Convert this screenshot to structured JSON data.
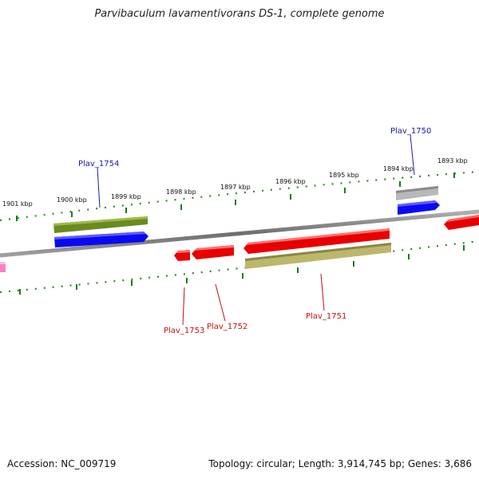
{
  "title": "Parvibaculum lavamentivorans DS-1, complete genome",
  "footer": {
    "accession": "Accession: NC_009719",
    "summary": "Topology: circular; Length: 3,914,745 bp; Genes: 3,686"
  },
  "colors": {
    "backbone": "#808080",
    "tick_major": "#1a7a1a",
    "tick_minor": "#2d8a2d",
    "forward_label": "#1a1aa8",
    "reverse_label": "#c41010",
    "gene_red": "#e80000",
    "gene_blue": "#0a0af0",
    "gene_green": "#6b8a1e",
    "gene_khaki": "#bdb76b",
    "gene_gray": "#b8b8b8",
    "gene_pink": "#ff80c0"
  },
  "scale": {
    "unit": "kbp",
    "labels": [
      "1901 kbp",
      "1900 kbp",
      "1899 kbp",
      "1898 kbp",
      "1897 kbp",
      "1896 kbp",
      "1895 kbp",
      "1894 kbp",
      "1893 kbp"
    ]
  },
  "genes": [
    {
      "name": "Plav_1754",
      "strand": "forward",
      "labeled": true
    },
    {
      "name": "Plav_1750",
      "strand": "forward",
      "labeled": true
    },
    {
      "name": "Plav_1753",
      "strand": "reverse",
      "labeled": true
    },
    {
      "name": "Plav_1752",
      "strand": "reverse",
      "labeled": true
    },
    {
      "name": "Plav_1751",
      "strand": "reverse",
      "labeled": true
    }
  ]
}
